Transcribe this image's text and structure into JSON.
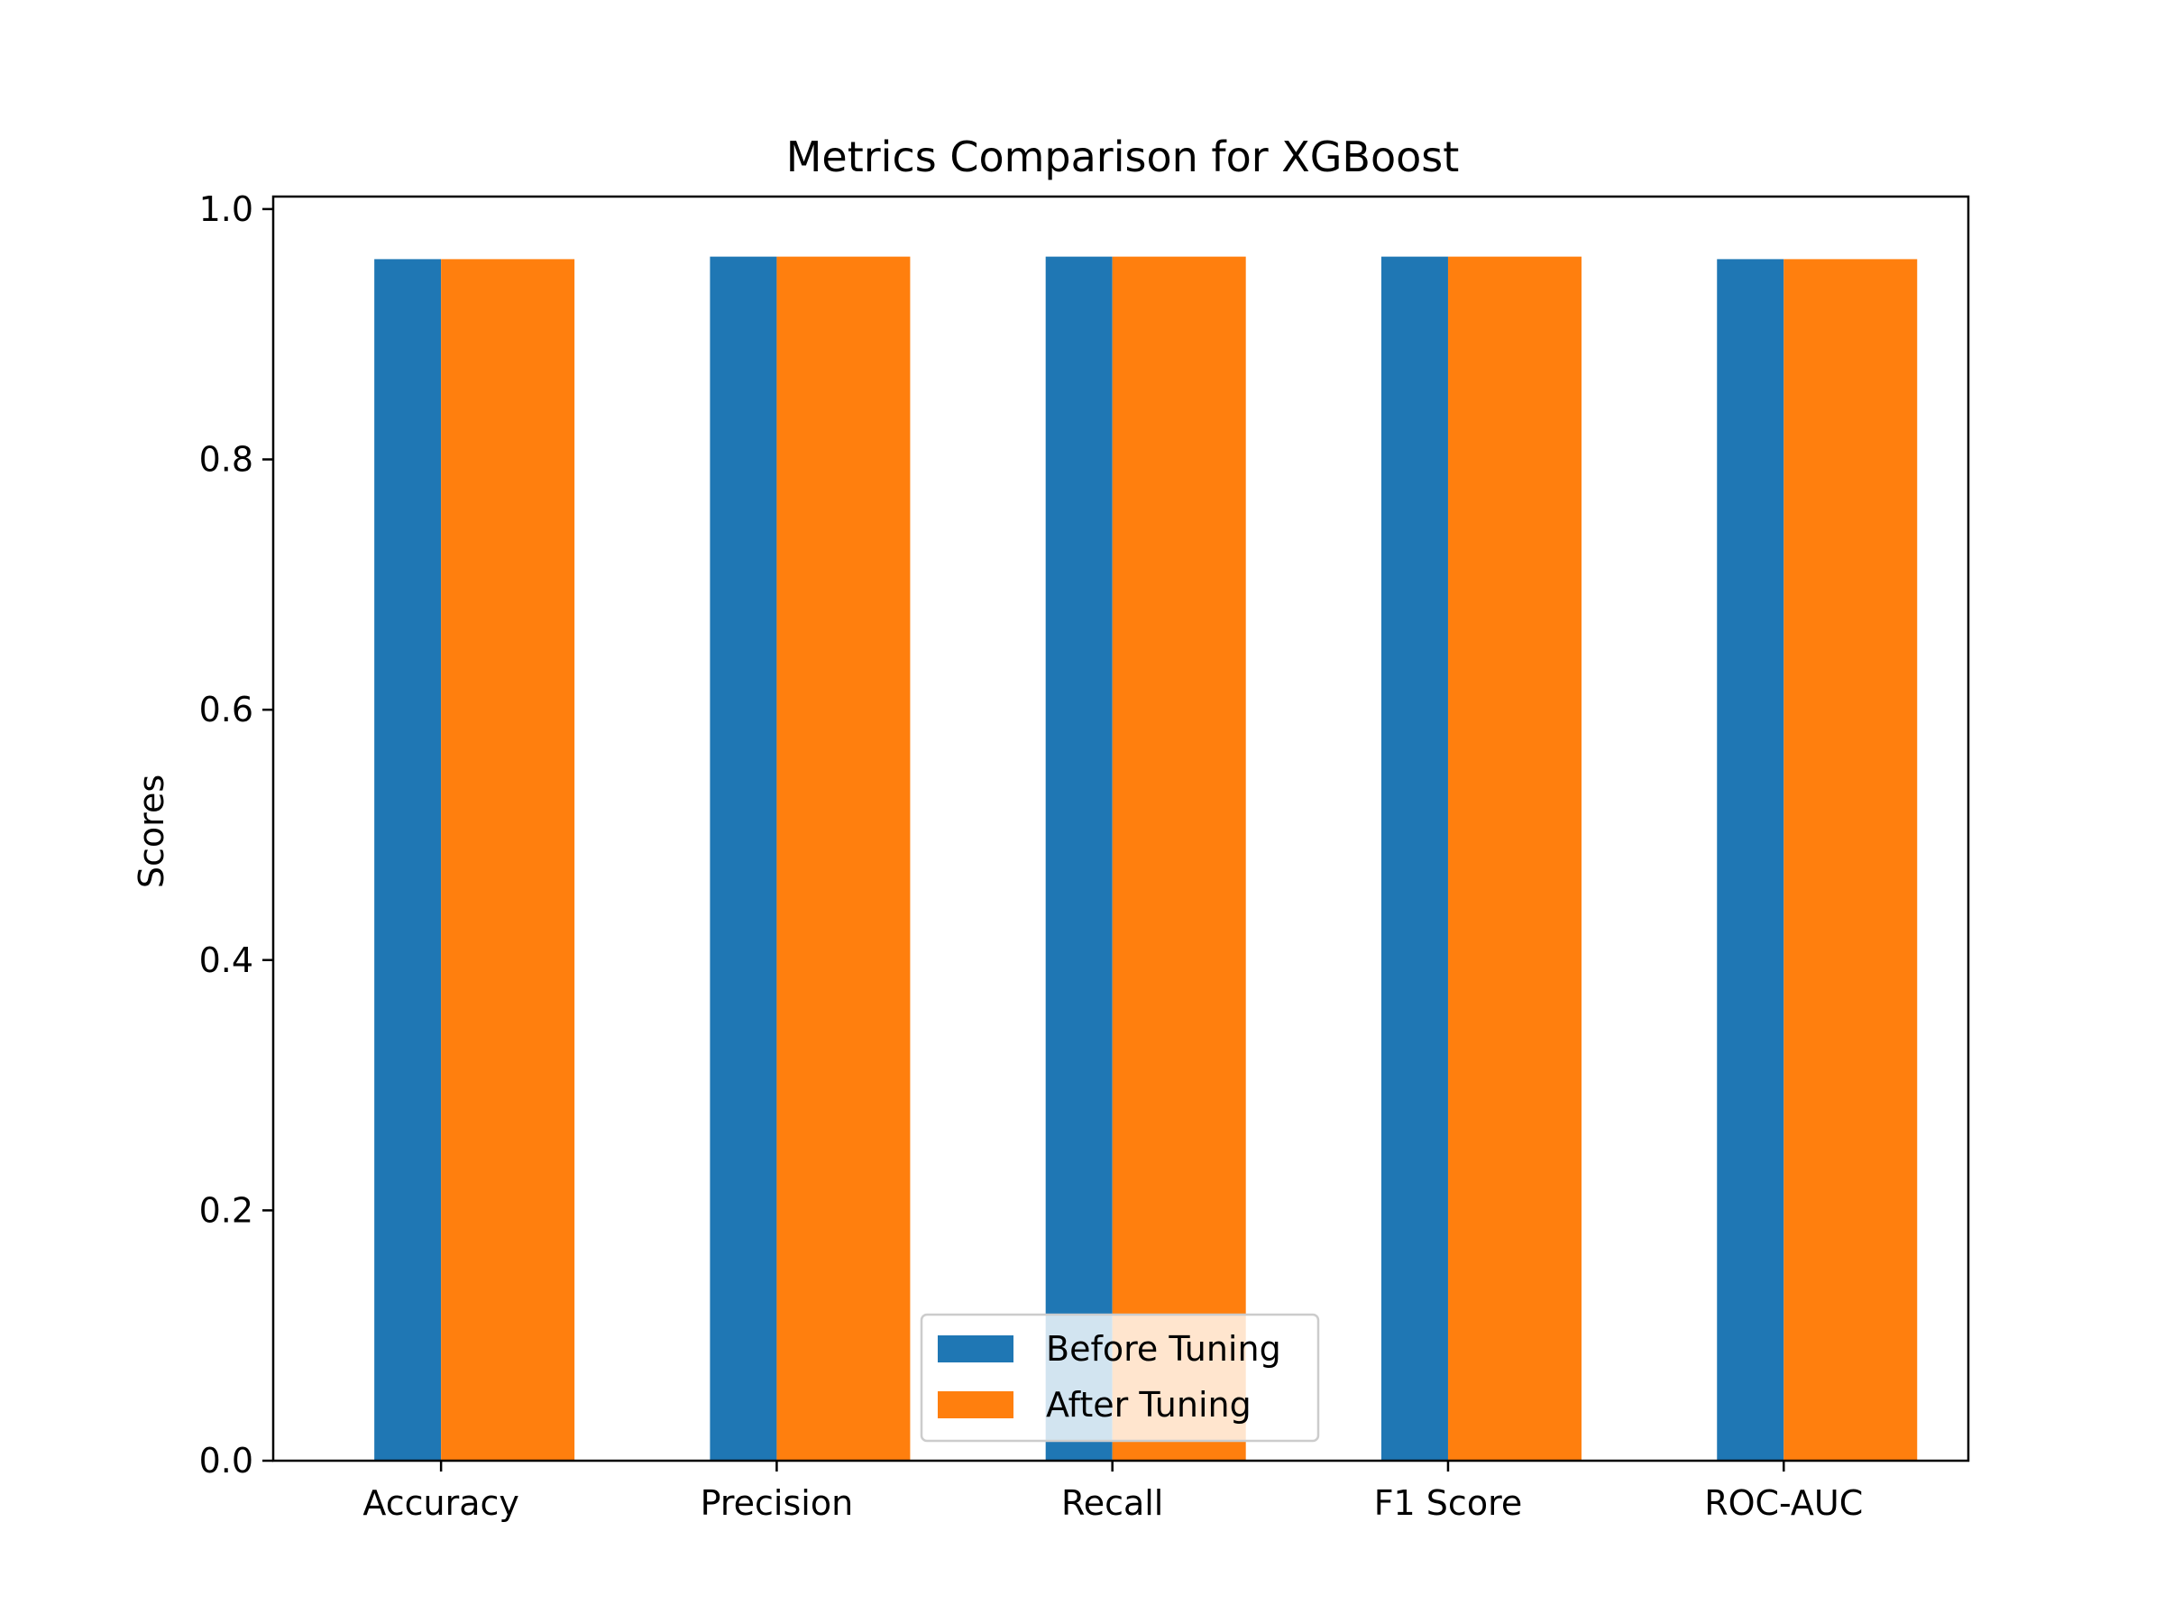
{
  "chart_data": {
    "type": "bar",
    "title": "Metrics Comparison for XGBoost",
    "xlabel": "",
    "ylabel": "Scores",
    "categories": [
      "Accuracy",
      "Precision",
      "Recall",
      "F1 Score",
      "ROC-AUC"
    ],
    "series": [
      {
        "name": "Before Tuning",
        "color": "#1f77b4",
        "values": [
          0.96,
          0.962,
          0.962,
          0.962,
          0.96
        ]
      },
      {
        "name": "After Tuning",
        "color": "#ff7f0e",
        "values": [
          0.96,
          0.962,
          0.962,
          0.962,
          0.96
        ]
      }
    ],
    "ylim": [
      0,
      1.01
    ],
    "yticks": [
      0.0,
      0.2,
      0.4,
      0.6,
      0.8,
      1.0
    ],
    "ytick_labels": [
      "0.0",
      "0.2",
      "0.4",
      "0.6",
      "0.8",
      "1.0"
    ],
    "grid": false,
    "legend_position": "bottom-center"
  }
}
